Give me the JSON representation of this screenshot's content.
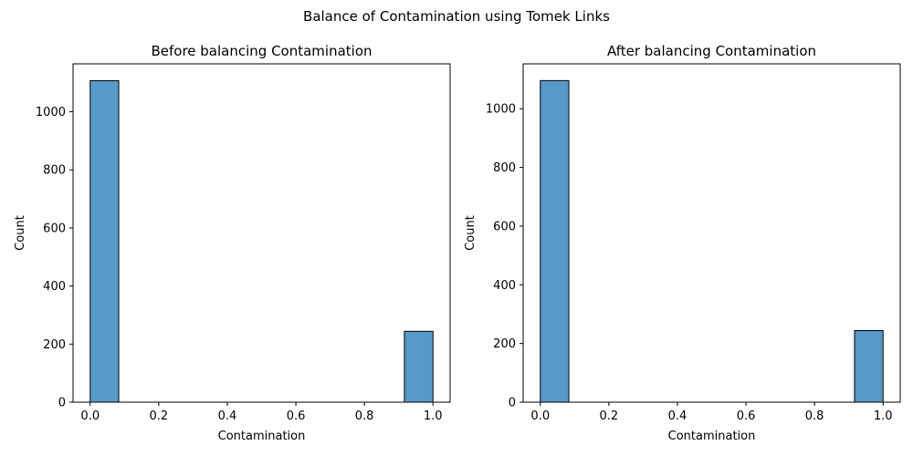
{
  "figure": {
    "suptitle": "Balance of Contamination using Tomek Links"
  },
  "colors": {
    "bar_fill": "#5799c7",
    "bar_edge": "#000000",
    "axis": "#000000",
    "background": "#ffffff"
  },
  "chart_data": [
    {
      "type": "bar",
      "title": "Before balancing Contamination",
      "xlabel": "Contamination",
      "ylabel": "Count",
      "xlim": [
        -0.05,
        1.05
      ],
      "ylim": [
        0,
        1165
      ],
      "xticks": [
        0.0,
        0.2,
        0.4,
        0.6,
        0.8,
        1.0
      ],
      "xtick_labels": [
        "0.0",
        "0.2",
        "0.4",
        "0.6",
        "0.8",
        "1.0"
      ],
      "yticks": [
        0,
        200,
        400,
        600,
        800,
        1000
      ],
      "ytick_labels": [
        "0",
        "200",
        "400",
        "600",
        "800",
        "1000"
      ],
      "bins": [
        {
          "x0": 0.0,
          "x1": 0.0833,
          "count": 1107
        },
        {
          "x0": 0.9167,
          "x1": 1.0,
          "count": 244
        }
      ],
      "grid": false,
      "legend": "none"
    },
    {
      "type": "bar",
      "title": "After balancing Contamination",
      "xlabel": "Contamination",
      "ylabel": "Count",
      "xlim": [
        -0.05,
        1.05
      ],
      "ylim": [
        0,
        1153
      ],
      "xticks": [
        0.0,
        0.2,
        0.4,
        0.6,
        0.8,
        1.0
      ],
      "xtick_labels": [
        "0.0",
        "0.2",
        "0.4",
        "0.6",
        "0.8",
        "1.0"
      ],
      "yticks": [
        0,
        200,
        400,
        600,
        800,
        1000
      ],
      "ytick_labels": [
        "0",
        "200",
        "400",
        "600",
        "800",
        "1000"
      ],
      "bins": [
        {
          "x0": 0.0,
          "x1": 0.0833,
          "count": 1096
        },
        {
          "x0": 0.9167,
          "x1": 1.0,
          "count": 244
        }
      ],
      "grid": false,
      "legend": "none"
    }
  ]
}
